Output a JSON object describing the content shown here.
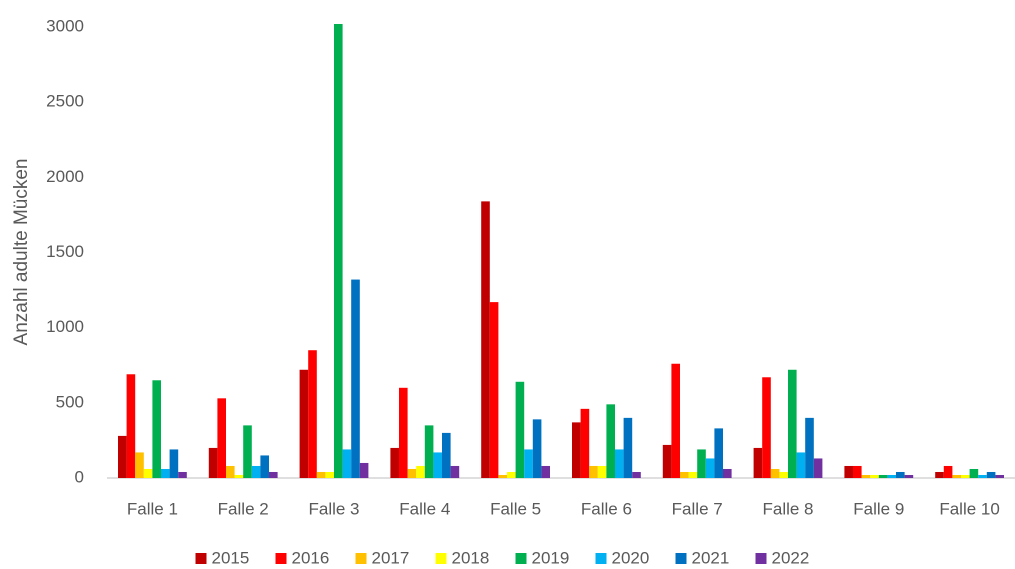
{
  "chart_data": {
    "type": "bar",
    "y_label": "Anzahl adulte Mücken",
    "categories": [
      "Falle 1",
      "Falle 2",
      "Falle 3",
      "Falle 4",
      "Falle 5",
      "Falle 6",
      "Falle 7",
      "Falle 8",
      "Falle 9",
      "Falle 10"
    ],
    "series": [
      {
        "name": "2015",
        "color": "#c00000",
        "values": [
          280,
          200,
          720,
          200,
          1840,
          370,
          220,
          200,
          80,
          40
        ]
      },
      {
        "name": "2016",
        "color": "#ff0000",
        "values": [
          690,
          530,
          850,
          600,
          1170,
          460,
          760,
          670,
          80,
          80
        ]
      },
      {
        "name": "2017",
        "color": "#ffc000",
        "values": [
          170,
          80,
          40,
          60,
          20,
          80,
          40,
          60,
          20,
          20
        ]
      },
      {
        "name": "2018",
        "color": "#ffff00",
        "values": [
          60,
          20,
          40,
          80,
          40,
          80,
          40,
          40,
          20,
          20
        ]
      },
      {
        "name": "2019",
        "color": "#00b050",
        "values": [
          650,
          350,
          3020,
          350,
          640,
          490,
          190,
          720,
          20,
          60
        ]
      },
      {
        "name": "2020",
        "color": "#00b0f0",
        "values": [
          60,
          80,
          190,
          170,
          190,
          190,
          130,
          170,
          20,
          20
        ]
      },
      {
        "name": "2021",
        "color": "#0070c0",
        "values": [
          190,
          150,
          1320,
          300,
          390,
          400,
          330,
          400,
          40,
          40
        ]
      },
      {
        "name": "2022",
        "color": "#7030a0",
        "values": [
          40,
          40,
          100,
          80,
          80,
          40,
          60,
          130,
          20,
          20
        ]
      }
    ],
    "ylim": [
      0,
      3000
    ],
    "yticks": [
      0,
      500,
      1000,
      1500,
      2000,
      2500,
      3000
    ],
    "grid": false,
    "legend": "bottom"
  }
}
